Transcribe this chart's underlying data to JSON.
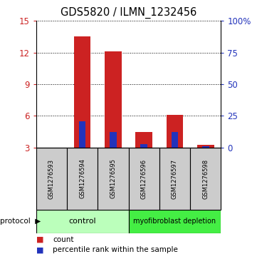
{
  "title": "GDS5820 / ILMN_1232456",
  "samples": [
    "GSM1276593",
    "GSM1276594",
    "GSM1276595",
    "GSM1276596",
    "GSM1276597",
    "GSM1276598"
  ],
  "count_values": [
    3.0,
    13.5,
    12.1,
    4.5,
    6.1,
    3.25
  ],
  "percentile_values": [
    3.0,
    5.5,
    4.5,
    3.3,
    4.5,
    3.15
  ],
  "baseline": 3.0,
  "ylim_left": [
    3,
    15
  ],
  "ylim_right": [
    0,
    100
  ],
  "yticks_left": [
    3,
    6,
    9,
    12,
    15
  ],
  "yticks_right": [
    0,
    25,
    50,
    75,
    100
  ],
  "ytick_labels_right": [
    "0",
    "25",
    "50",
    "75",
    "100%"
  ],
  "bar_color_red": "#cc2222",
  "bar_color_blue": "#2233bb",
  "bar_width": 0.55,
  "bg_color": "#ffffff",
  "sample_bg": "#cccccc",
  "control_label": "control",
  "depletion_label": "myofibroblast depletion",
  "control_color": "#bbffbb",
  "depletion_color": "#44ee44",
  "protocol_label": "protocol",
  "legend_red_label": "count",
  "legend_blue_label": "percentile rank within the sample",
  "title_fontsize": 10.5,
  "tick_fontsize": 8.5
}
